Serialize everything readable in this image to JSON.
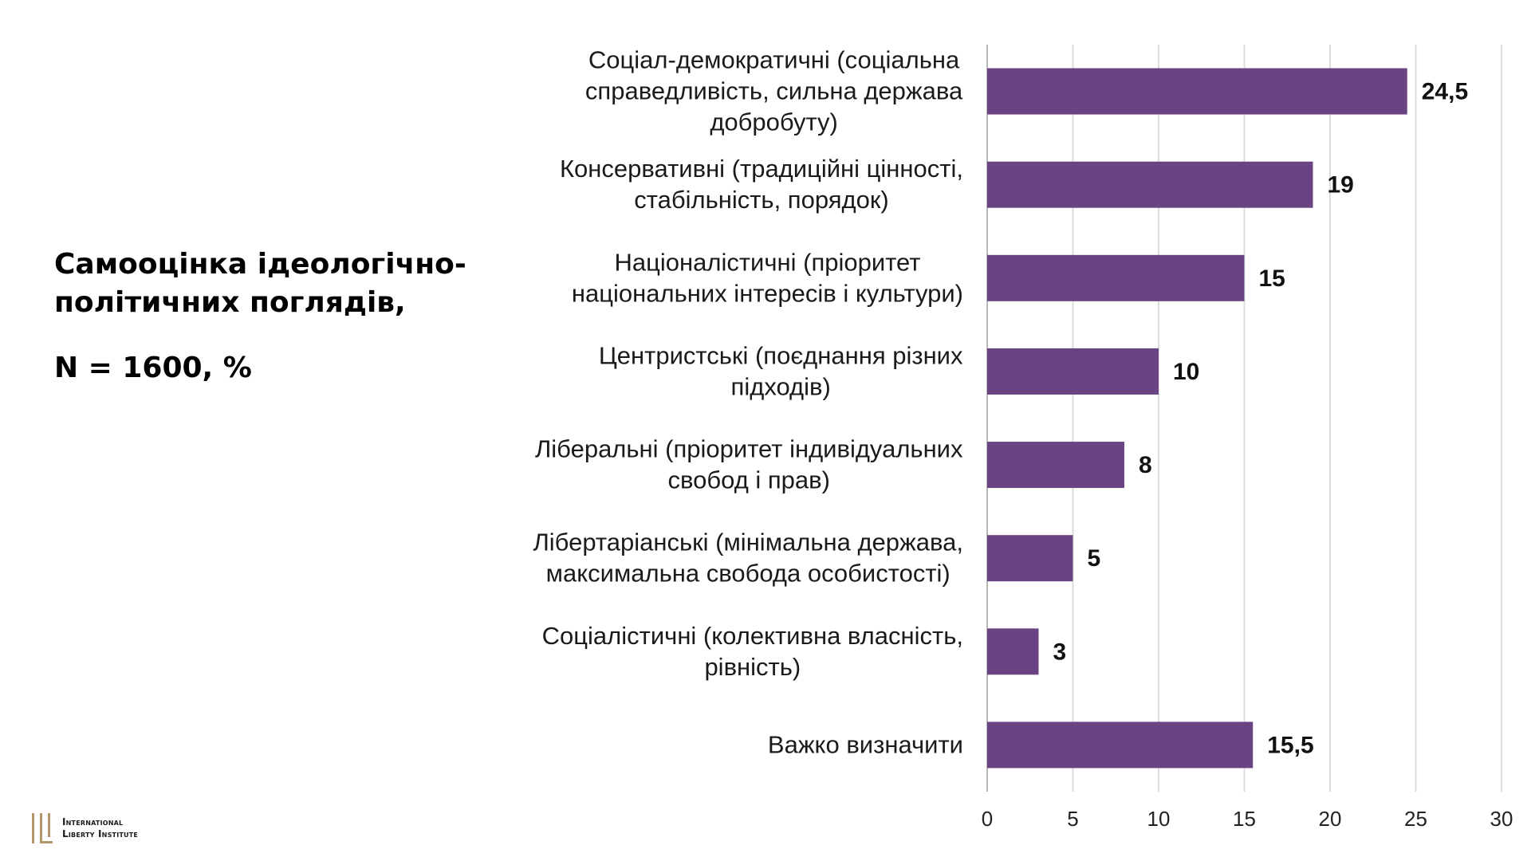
{
  "side_title": {
    "line1": "Самооцінка ідеологічно-",
    "line2": "політичних поглядів,",
    "line3": "N = 1600, %"
  },
  "logo": {
    "line1": "International",
    "line2": "Liberty Institute",
    "accent_color": "#b5966b"
  },
  "chart_data": {
    "type": "bar",
    "orientation": "horizontal",
    "bar_color": "#6a4382",
    "grid": true,
    "xlim": [
      0,
      30
    ],
    "x_ticks": [
      0,
      5,
      10,
      15,
      20,
      25,
      30
    ],
    "categories": [
      [
        "Соціал-демократичні (соціальна",
        "справедливість, сильна держава",
        "добробуту)"
      ],
      [
        "Консервативні (традиційні цінності,",
        "стабільність, порядок)"
      ],
      [
        "Націоналістичні (пріоритет",
        "національних інтересів і культури)"
      ],
      [
        "Центристські (поєднання різних",
        "підходів)"
      ],
      [
        "Ліберальні (пріоритет індивідуальних",
        "свобод і прав)"
      ],
      [
        "Лібертаріанські (мінімальна держава,",
        "максимальна свобода особистості)"
      ],
      [
        "Соціалістичні (колективна власність,",
        "рівність)"
      ],
      [
        "Важко визначити"
      ]
    ],
    "values": [
      24.5,
      19,
      15,
      10,
      8,
      5,
      3,
      15.5
    ],
    "value_labels": [
      "24,5",
      "19",
      "15",
      "10",
      "8",
      "5",
      "3",
      "15,5"
    ]
  }
}
